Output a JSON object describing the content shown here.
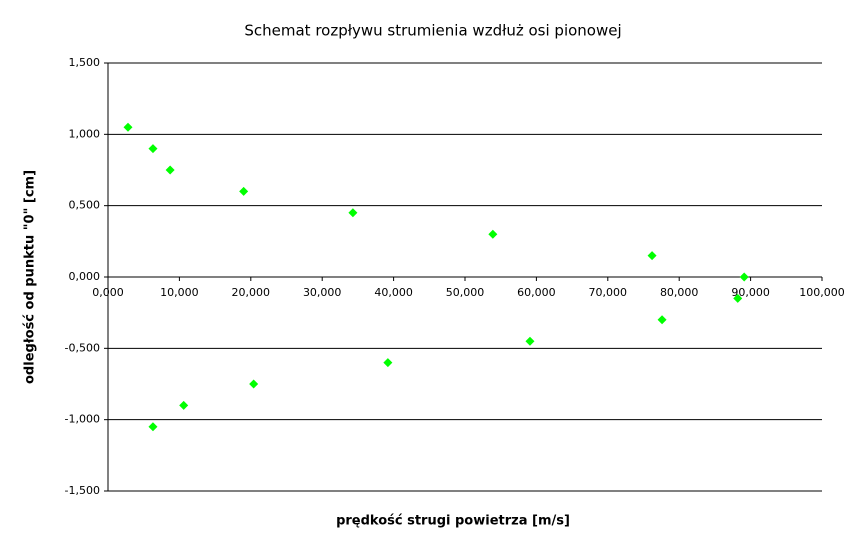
{
  "chart_data": {
    "type": "scatter",
    "title": "Schemat rozpływu strumienia wzdłuż osi pionowej",
    "x_label": "prędkość strugi powietrza [m/s]",
    "y_label": "odległość od punktu \"0\" [cm]",
    "color": "#00ff00",
    "grid": true,
    "xlim": [
      0,
      100
    ],
    "ylim": [
      -1.5,
      1.5
    ],
    "xticks": [
      {
        "value": 0,
        "label": "0,000"
      },
      {
        "value": 10,
        "label": "10,000"
      },
      {
        "value": 20,
        "label": "20,000"
      },
      {
        "value": 30,
        "label": "30,000"
      },
      {
        "value": 40,
        "label": "40,000"
      },
      {
        "value": 50,
        "label": "50,000"
      },
      {
        "value": 60,
        "label": "60,000"
      },
      {
        "value": 70,
        "label": "70,000"
      },
      {
        "value": 80,
        "label": "80,000"
      },
      {
        "value": 90,
        "label": "90,000"
      },
      {
        "value": 100,
        "label": "100,000"
      }
    ],
    "yticks": [
      {
        "value": 1.5,
        "label": "1,500"
      },
      {
        "value": 1,
        "label": "1,000"
      },
      {
        "value": 0.5,
        "label": "0,500"
      },
      {
        "value": 0,
        "label": "0,000"
      },
      {
        "value": -0.5,
        "label": "-0,500"
      },
      {
        "value": -1,
        "label": "-1,000"
      },
      {
        "value": -1.5,
        "label": "-1,500"
      }
    ],
    "x": [
      2.8,
      6.3,
      8.7,
      19.0,
      34.3,
      53.9,
      76.2,
      89.1,
      88.2,
      77.6,
      59.1,
      39.2,
      20.4,
      10.6,
      6.3
    ],
    "values": [
      1.05,
      0.9,
      0.75,
      0.6,
      0.45,
      0.3,
      0.15,
      0,
      -0.15,
      -0.3,
      -0.45,
      -0.6,
      -0.75,
      -0.9,
      -1.05
    ]
  }
}
